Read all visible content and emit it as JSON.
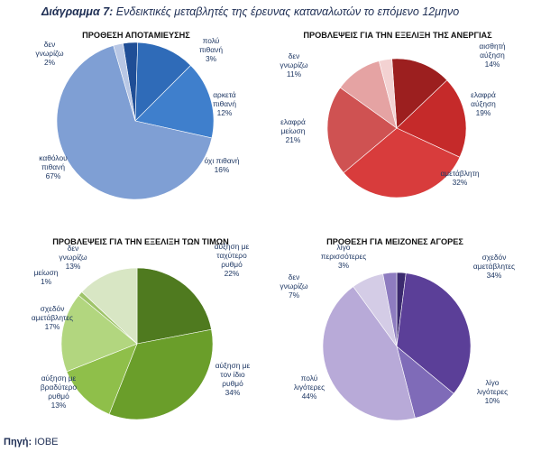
{
  "header": {
    "title_lead": "Διάγραμμα 7:",
    "title_rest": " Ενδεικτικές μεταβλητές της έρευνας καταναλωτών το επόμενο 12μηνο"
  },
  "source": {
    "label": "Πηγή:",
    "value": " IOBE"
  },
  "chart_data": [
    {
      "type": "pie",
      "title": "ΠΡΟΘΕΣΗ ΑΠΟΤΑΜΙΕΥΣΗΣ",
      "slices": [
        {
          "label": [
            "πολύ",
            "πιθανή"
          ],
          "value": 3,
          "pct": "3%",
          "color": "#1f4e96"
        },
        {
          "label": [
            "αρκετά",
            "πιθανή"
          ],
          "value": 12,
          "pct": "12%",
          "color": "#2f6bb8"
        },
        {
          "label": [
            "όχι πιθανή"
          ],
          "value": 16,
          "pct": "16%",
          "color": "#3f7fcc"
        },
        {
          "label": [
            "καθόλου",
            "πιθανή"
          ],
          "value": 67,
          "pct": "67%",
          "color": "#7f9fd4"
        },
        {
          "label": [
            "δεν",
            "γνωρίζω"
          ],
          "value": 2,
          "pct": "2%",
          "color": "#b8c7e5"
        }
      ]
    },
    {
      "type": "pie",
      "title": "ΠΡΟΒΛΕΨΕΙΣ ΓΙΑ ΤΗΝ ΕΞΕΛΙΞΗ ΤΗΣ ΑΝΕΡΓΙΑΣ",
      "slices": [
        {
          "label": [
            "αισθητή",
            "αύξηση"
          ],
          "value": 14,
          "pct": "14%",
          "color": "#9c1f1f"
        },
        {
          "label": [
            "ελαφρά",
            "αύξηση"
          ],
          "value": 19,
          "pct": "19%",
          "color": "#c52a2a"
        },
        {
          "label": [
            "αμετάβλητη"
          ],
          "value": 32,
          "pct": "32%",
          "color": "#d83c3c"
        },
        {
          "label": [
            "ελαφρά",
            "μείωση"
          ],
          "value": 21,
          "pct": "21%",
          "color": "#cf5252"
        },
        {
          "label": [
            "δεν",
            "γνωρίζω"
          ],
          "value": 11,
          "pct": "11%",
          "color": "#e5a3a3"
        },
        {
          "label": [],
          "value": 3,
          "pct": "",
          "color": "#f3d2d2"
        }
      ]
    },
    {
      "type": "pie",
      "title": "ΠΡΟΒΛΕΨΕΙΣ ΓΙΑ ΤΗΝ ΕΞΕΛΙΞΗ ΤΩΝ ΤΙΜΩΝ",
      "slices": [
        {
          "label": [
            "αύξηση με",
            "ταχύτερο",
            "ρυθμό"
          ],
          "value": 22,
          "pct": "22%",
          "color": "#4f7a1f"
        },
        {
          "label": [
            "αύξηση με",
            "τον ίδιο",
            "ρυθμό"
          ],
          "value": 34,
          "pct": "34%",
          "color": "#6a9e2a"
        },
        {
          "label": [
            "αύξηση με",
            "βραδύτερο",
            "ρυθμό"
          ],
          "value": 13,
          "pct": "13%",
          "color": "#8fbf4a"
        },
        {
          "label": [
            "σχεδόν",
            "αμετάβλητες"
          ],
          "value": 17,
          "pct": "17%",
          "color": "#b2d67f"
        },
        {
          "label": [
            "μείωση"
          ],
          "value": 1,
          "pct": "1%",
          "color": "#9fc46a"
        },
        {
          "label": [
            "δεν",
            "γνωρίζω"
          ],
          "value": 13,
          "pct": "13%",
          "color": "#d8e6c4"
        }
      ]
    },
    {
      "type": "pie",
      "title": "ΠΡΟΘΕΣΗ ΓΙΑ ΜΕΙΖΟΝΕΣ ΑΓΟΡΕΣ",
      "slices": [
        {
          "label": [],
          "value": 2,
          "pct": "",
          "color": "#3b2a6e"
        },
        {
          "label": [
            "σχεδόν",
            "αμετάβλητες"
          ],
          "value": 34,
          "pct": "34%",
          "color": "#5b3f98"
        },
        {
          "label": [
            "λίγο",
            "λιγότερες"
          ],
          "value": 10,
          "pct": "10%",
          "color": "#7f6bb8"
        },
        {
          "label": [
            "πολύ",
            "λιγότερες"
          ],
          "value": 44,
          "pct": "44%",
          "color": "#b8aad8"
        },
        {
          "label": [
            "δεν",
            "γνωρίζω"
          ],
          "value": 7,
          "pct": "7%",
          "color": "#d4cce6"
        },
        {
          "label": [
            "λίγο",
            "περισσότερες"
          ],
          "value": 3,
          "pct": "3%",
          "color": "#8e7cc0"
        }
      ]
    }
  ]
}
